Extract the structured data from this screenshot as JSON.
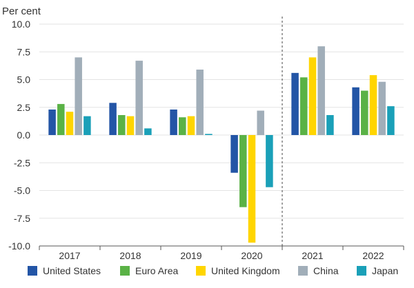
{
  "chart_data": {
    "type": "bar",
    "ylabel": "Per cent",
    "categories": [
      "2017",
      "2018",
      "2019",
      "2020",
      "2021",
      "2022"
    ],
    "ylim": [
      -10,
      10
    ],
    "yticks": [
      "10.0",
      "7.5",
      "5.0",
      "2.5",
      "0.0",
      "-2.5",
      "-5.0",
      "-7.5",
      "-10.0"
    ],
    "ytick_values": [
      10,
      7.5,
      5,
      2.5,
      0,
      -2.5,
      -5,
      -7.5,
      -10
    ],
    "grid": true,
    "forecast_divider_after": "2020",
    "legend_position": "bottom",
    "series": [
      {
        "name": "United States",
        "color": "#2355a6",
        "values": [
          2.3,
          2.9,
          2.3,
          -3.4,
          5.6,
          4.3
        ]
      },
      {
        "name": "Euro Area",
        "color": "#5ab246",
        "values": [
          2.8,
          1.8,
          1.6,
          -6.5,
          5.2,
          4.0
        ]
      },
      {
        "name": "United Kingdom",
        "color": "#ffd500",
        "values": [
          2.1,
          1.7,
          1.7,
          -9.7,
          7.0,
          5.4
        ]
      },
      {
        "name": "China",
        "color": "#a1aeb9",
        "values": [
          7.0,
          6.7,
          5.9,
          2.2,
          8.0,
          4.8
        ]
      },
      {
        "name": "Japan",
        "color": "#1aa0b8",
        "values": [
          1.7,
          0.6,
          0.1,
          -4.7,
          1.8,
          2.6
        ]
      }
    ]
  }
}
